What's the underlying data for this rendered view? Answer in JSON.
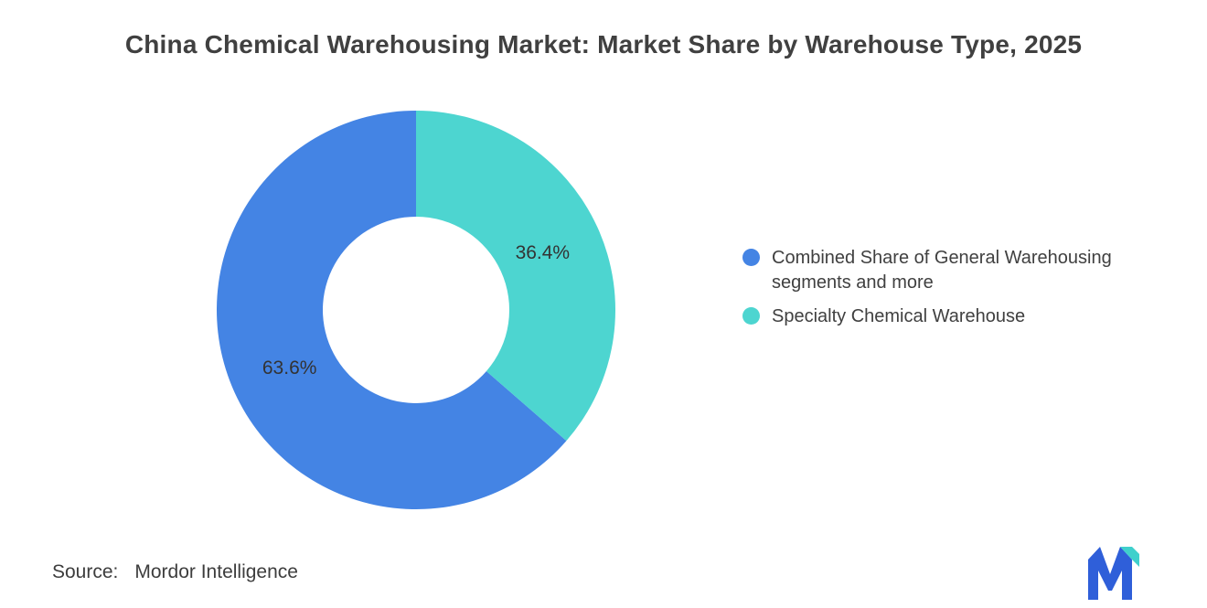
{
  "title": "China Chemical Warehousing Market: Market Share by Warehouse Type, 2025",
  "source": {
    "label": "Source:",
    "value": "Mordor Intelligence"
  },
  "colors": {
    "blue": "#4484E4",
    "teal": "#4DD5D0",
    "title_text": "#404040",
    "label_text": "#333333"
  },
  "chart_data": {
    "type": "pie",
    "donut": true,
    "start_angle_deg": -90,
    "direction": "counterclockwise",
    "legend_position": "right",
    "title": "China Chemical Warehousing Market: Market Share by Warehouse Type, 2025",
    "slices": [
      {
        "label": "Combined Share of General Warehousing segments and more",
        "value": 63.6,
        "display": "63.6%",
        "color": "#4484E4"
      },
      {
        "label": "Specialty Chemical Warehouse",
        "value": 36.4,
        "display": "36.4%",
        "color": "#4DD5D0"
      }
    ]
  }
}
